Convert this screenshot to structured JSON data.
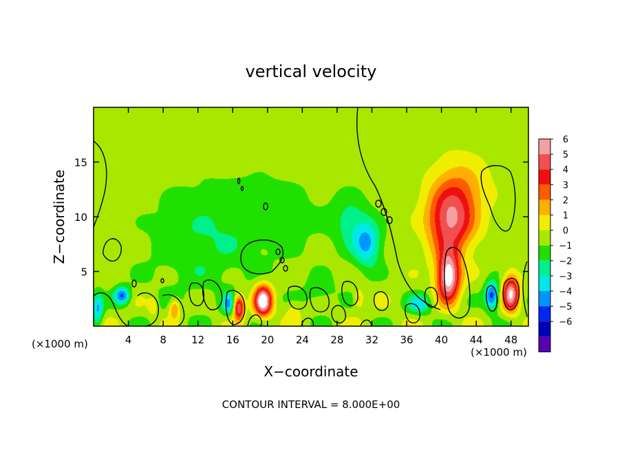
{
  "chart_data": {
    "type": "heatmap",
    "title": "vertical velocity",
    "xlabel": "X−coordinate",
    "ylabel": "Z−coordinate",
    "x_unit_left": "(×1000 m)",
    "x_unit_right": "(×1000 m)",
    "xlim": [
      0,
      50
    ],
    "ylim": [
      0,
      20
    ],
    "x_ticks": [
      4,
      8,
      12,
      16,
      20,
      24,
      28,
      32,
      36,
      40,
      44,
      48
    ],
    "y_ticks": [
      5,
      10,
      15
    ],
    "colorbar": {
      "levels": [
        6,
        5,
        4,
        3,
        2,
        1,
        0,
        -1,
        -2,
        -3,
        -4,
        -5,
        -6
      ],
      "labels": [
        "6",
        "5",
        "4",
        "3",
        "2",
        "1",
        "0",
        "−1",
        "−2",
        "−3",
        "−4",
        "−5",
        "−6"
      ],
      "colors": [
        "#f4a0a0",
        "#f05050",
        "#ee1010",
        "#ff5a00",
        "#ffb000",
        "#f0ee00",
        "#a8e800",
        "#20e000",
        "#00f08c",
        "#00e8e8",
        "#0096ff",
        "#0028f0",
        "#0000b4",
        "#5a00b4"
      ]
    },
    "background_value": 0,
    "features": [
      {
        "x": 41,
        "z": 9.5,
        "value": 5.2,
        "sx": 2.6,
        "sz": 3.0
      },
      {
        "x": 40.8,
        "z": 4.5,
        "value": 7.5,
        "sx": 1.3,
        "sz": 2.2
      },
      {
        "x": 42.2,
        "z": 12.5,
        "value": 2.0,
        "sx": 3.2,
        "sz": 3.0
      },
      {
        "x": 48,
        "z": 3,
        "value": 6.5,
        "sx": 0.9,
        "sz": 1.6
      },
      {
        "x": 19.5,
        "z": 2.3,
        "value": 7.5,
        "sx": 1.0,
        "sz": 1.4
      },
      {
        "x": 16.7,
        "z": 1.7,
        "value": 6.0,
        "sx": 0.6,
        "sz": 1.1
      },
      {
        "x": 9.3,
        "z": 1.6,
        "value": 3.0,
        "sx": 0.6,
        "sz": 0.9
      },
      {
        "x": 30.5,
        "z": 2.5,
        "value": 2.2,
        "sx": 0.5,
        "sz": 0.8
      },
      {
        "x": 31.5,
        "z": 7.5,
        "value": -3.5,
        "sx": 1.6,
        "sz": 2.2
      },
      {
        "x": 29.5,
        "z": 9.5,
        "value": -1.8,
        "sx": 2.0,
        "sz": 2.5
      },
      {
        "x": 45.8,
        "z": 2.8,
        "value": -5.0,
        "sx": 0.8,
        "sz": 1.3
      },
      {
        "x": 3.3,
        "z": 2.8,
        "value": -4.5,
        "sx": 0.9,
        "sz": 0.8
      },
      {
        "x": 15.5,
        "z": 2.0,
        "value": -3.0,
        "sx": 0.7,
        "sz": 1.0
      },
      {
        "x": 37.5,
        "z": 2.0,
        "value": -2.8,
        "sx": 1.4,
        "sz": 0.9
      },
      {
        "x": 12,
        "z": 7.5,
        "value": -1.3,
        "sx": 6.0,
        "sz": 5.0
      },
      {
        "x": 20,
        "z": 10,
        "value": -1.0,
        "sx": 7.0,
        "sz": 4.0
      },
      {
        "x": 26,
        "z": 3,
        "value": -1.2,
        "sx": 2.0,
        "sz": 1.5
      },
      {
        "x": 0.5,
        "z": 1.5,
        "value": -3.5,
        "sx": 0.6,
        "sz": 1.5
      },
      {
        "x": 6.8,
        "z": 1.8,
        "value": 1.5,
        "sx": 0.5,
        "sz": 0.8
      },
      {
        "x": 23,
        "z": 1.5,
        "value": 1.2,
        "sx": 1.0,
        "sz": 0.8
      }
    ]
  },
  "footer": {
    "contour_interval": "CONTOUR INTERVAL = 8.000E+00"
  }
}
